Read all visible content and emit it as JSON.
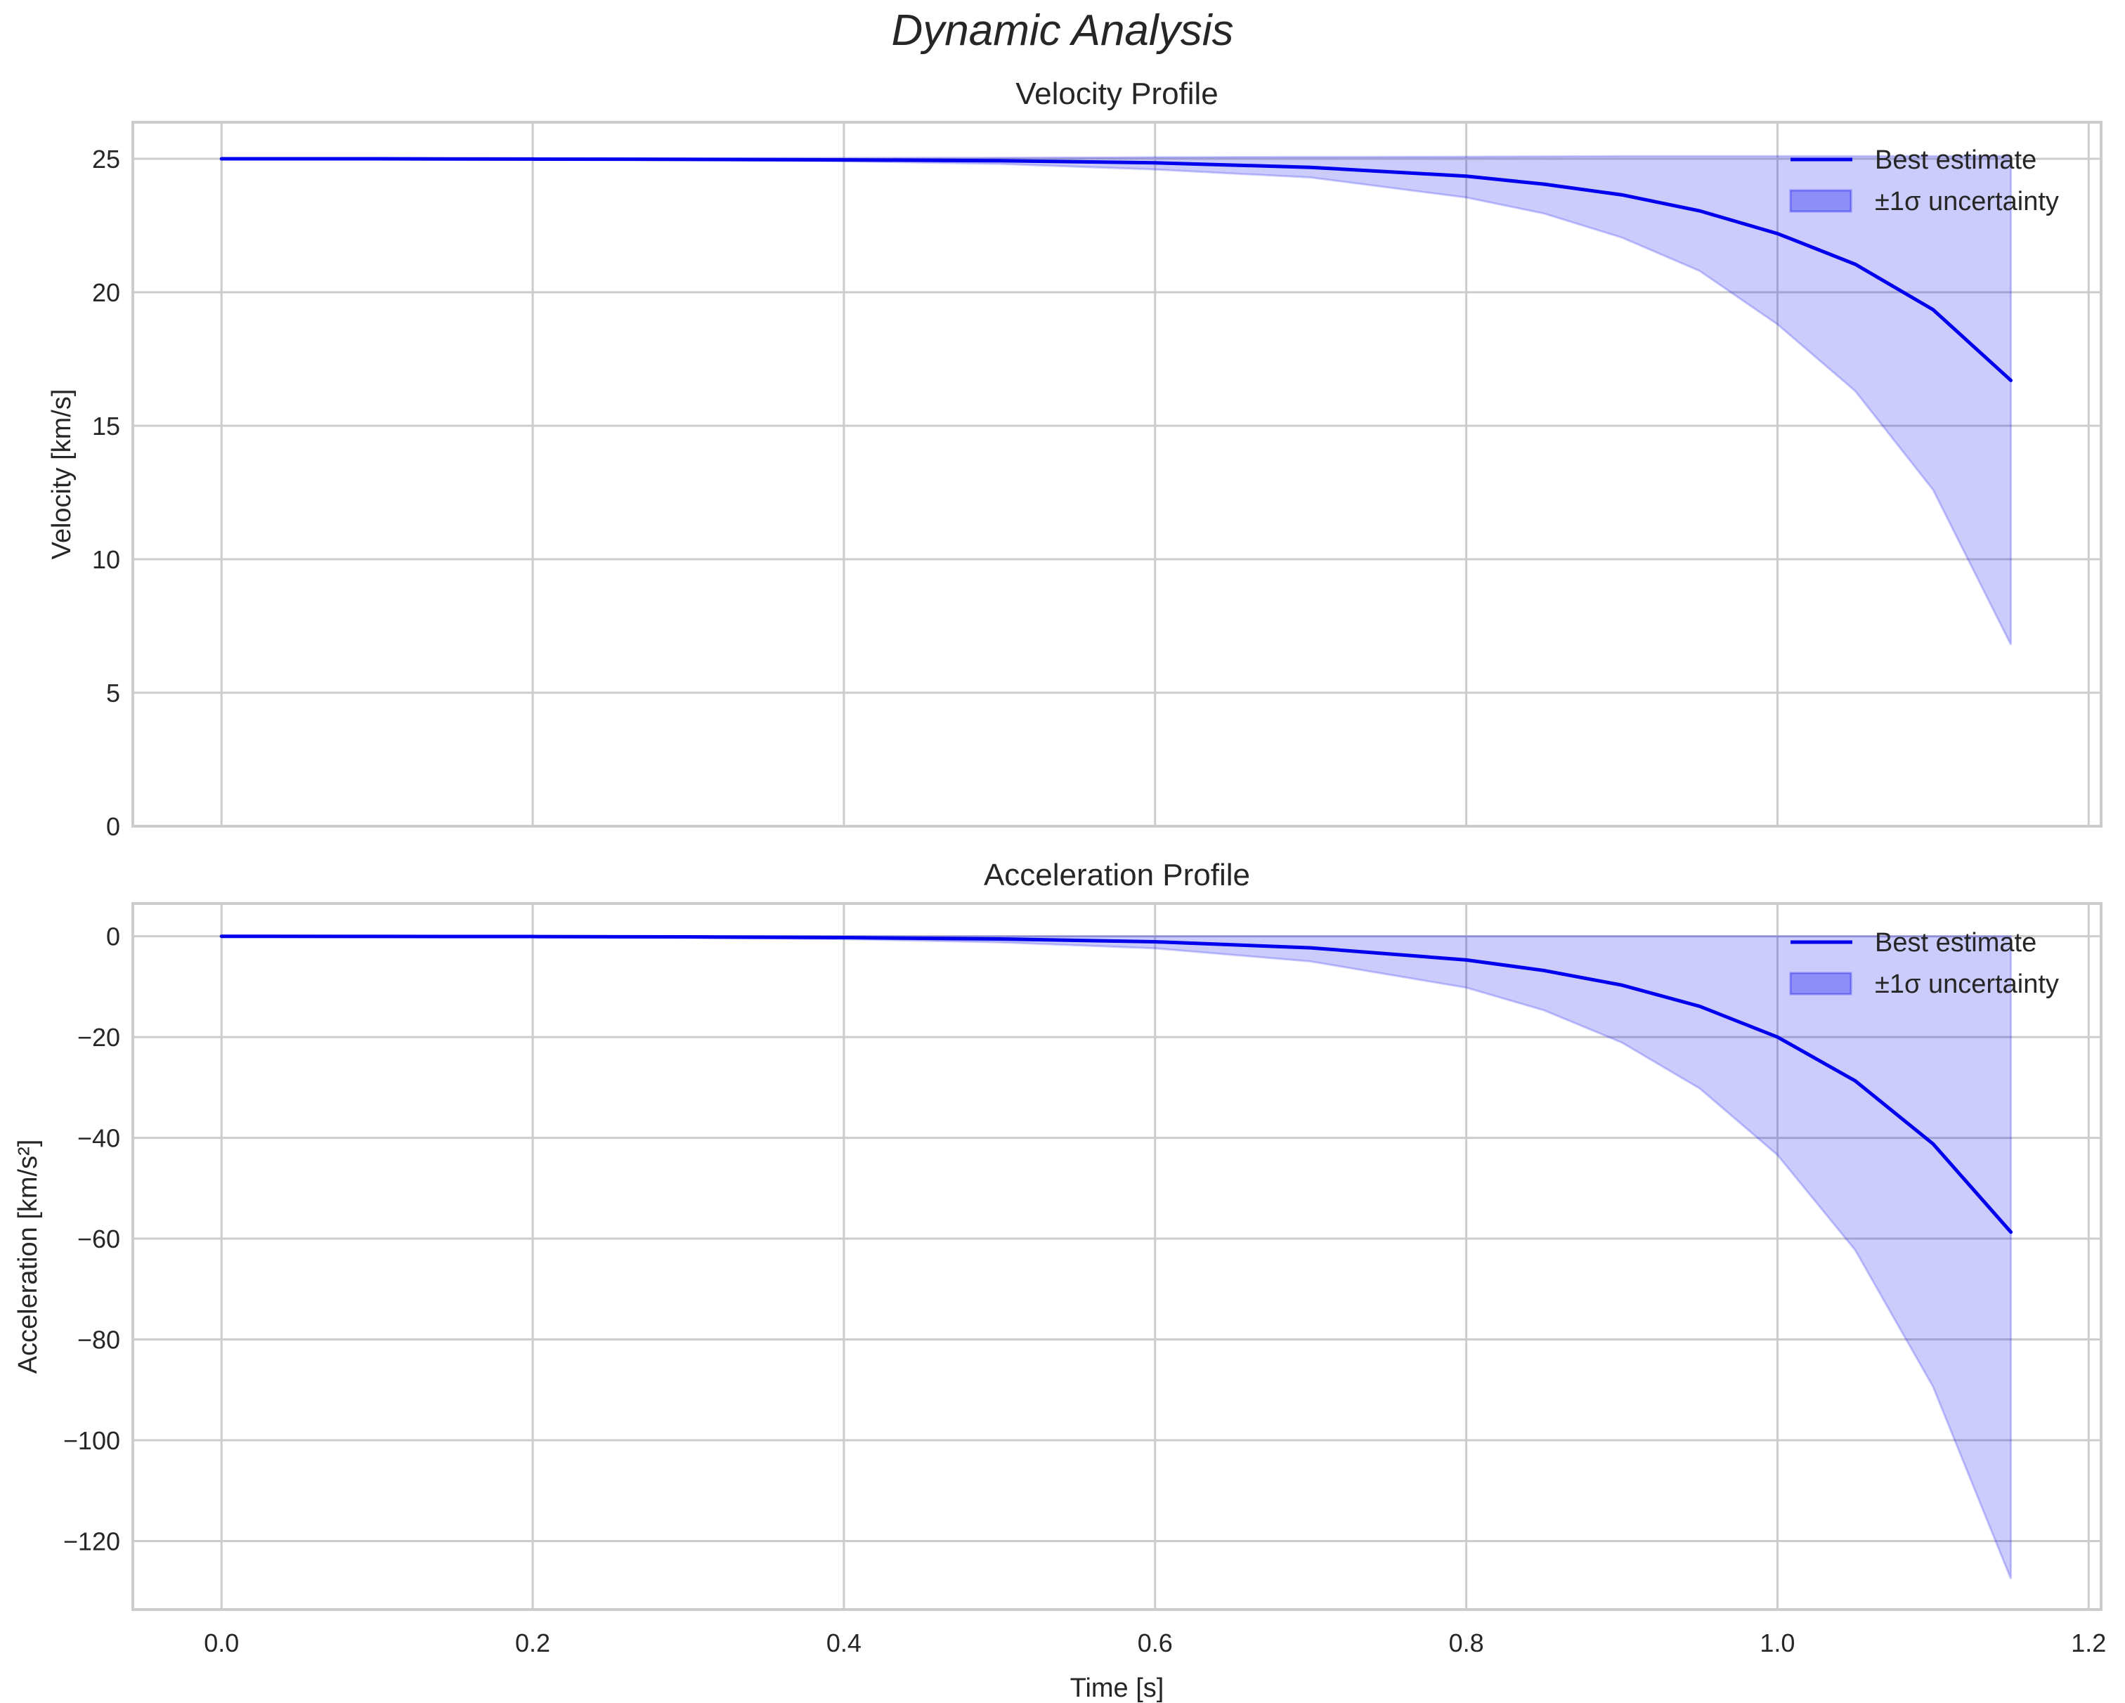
{
  "figure": {
    "title": "Dynamic Analysis"
  },
  "chart_data": [
    {
      "type": "line",
      "title": "Velocity Profile",
      "xlabel": "",
      "ylabel": "Velocity [km/s]",
      "xlim": [
        -0.057,
        1.208
      ],
      "ylim": [
        0,
        26.37
      ],
      "xticks": [
        "0.0",
        "0.2",
        "0.4",
        "0.6",
        "0.8",
        "1.0",
        "1.2"
      ],
      "yticks": [
        "0",
        "5",
        "10",
        "15",
        "20",
        "25"
      ],
      "ytick_values": [
        0,
        5,
        10,
        15,
        20,
        25
      ],
      "grid": true,
      "legend_position": "upper right",
      "legend": [
        "Best estimate",
        "±1σ uncertainty"
      ],
      "x": [
        0.0,
        0.1,
        0.2,
        0.3,
        0.4,
        0.5,
        0.6,
        0.7,
        0.8,
        0.85,
        0.9,
        0.95,
        1.0,
        1.05,
        1.1,
        1.15
      ],
      "series": [
        {
          "name": "Best estimate",
          "values": [
            25.0,
            25.0,
            24.99,
            24.98,
            24.96,
            24.93,
            24.85,
            24.68,
            24.35,
            24.05,
            23.65,
            23.05,
            22.2,
            21.05,
            19.35,
            16.7
          ]
        },
        {
          "name": "±1σ lower",
          "values": [
            24.99,
            24.99,
            24.98,
            24.96,
            24.91,
            24.81,
            24.6,
            24.3,
            23.55,
            22.95,
            22.05,
            20.8,
            18.8,
            16.3,
            12.6,
            6.8
          ]
        },
        {
          "name": "±1σ upper",
          "values": [
            25.01,
            25.01,
            25.01,
            25.02,
            25.03,
            25.04,
            25.06,
            25.07,
            25.08,
            25.09,
            25.1,
            25.1,
            25.1,
            25.1,
            25.1,
            25.1
          ]
        }
      ]
    },
    {
      "type": "line",
      "title": "Acceleration Profile",
      "xlabel": "Time [s]",
      "ylabel": "Acceleration [km/s²]",
      "xlim": [
        -0.057,
        1.208
      ],
      "ylim": [
        -133.6,
        6.5
      ],
      "xticks": [
        "0.0",
        "0.2",
        "0.4",
        "0.6",
        "0.8",
        "1.0",
        "1.2"
      ],
      "yticks": [
        "0",
        "−20",
        "−40",
        "−60",
        "−80",
        "−100",
        "−120"
      ],
      "ytick_values": [
        0,
        -20,
        -40,
        -60,
        -80,
        -100,
        -120
      ],
      "grid": true,
      "legend_position": "upper right",
      "legend": [
        "Best estimate",
        "±1σ uncertainty"
      ],
      "x": [
        0.0,
        0.1,
        0.2,
        0.3,
        0.4,
        0.5,
        0.6,
        0.7,
        0.8,
        0.85,
        0.9,
        0.95,
        1.0,
        1.05,
        1.1,
        1.15
      ],
      "series": [
        {
          "name": "Best estimate",
          "values": [
            -0.01,
            -0.03,
            -0.06,
            -0.13,
            -0.26,
            -0.54,
            -1.1,
            -2.3,
            -4.7,
            -6.8,
            -9.7,
            -13.9,
            -20.0,
            -28.7,
            -41.2,
            -58.7
          ]
        },
        {
          "name": "±1σ lower",
          "values": [
            -0.02,
            -0.06,
            -0.13,
            -0.28,
            -0.57,
            -1.2,
            -2.4,
            -5.0,
            -10.2,
            -14.7,
            -21.1,
            -30.2,
            -43.4,
            -62.3,
            -89.4,
            -127.5
          ]
        },
        {
          "name": "±1σ upper",
          "values": [
            0,
            0,
            0,
            0,
            0,
            0,
            0,
            0,
            0,
            0,
            0,
            0,
            0,
            0,
            0,
            0
          ]
        }
      ]
    }
  ],
  "colors": {
    "line": "#0000ee",
    "band_fill": "#ccccfa",
    "band_edge": "#a6a6f2",
    "grid": "#cccccc",
    "text": "#262626"
  }
}
